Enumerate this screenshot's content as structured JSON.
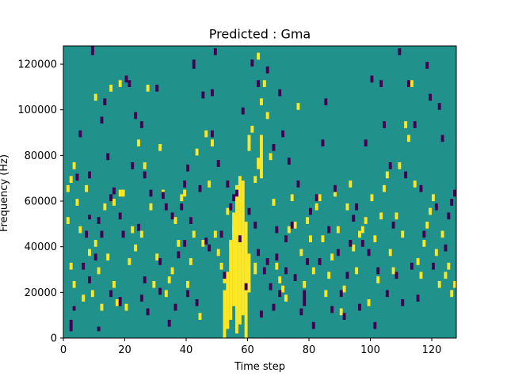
{
  "chart_data": {
    "type": "heatmap",
    "title": "Predicted : Gma",
    "xlabel": "Time step",
    "ylabel": "Frequency (Hz)",
    "xlim": [
      0,
      128
    ],
    "ylim": [
      0,
      128000
    ],
    "x_ticks": [
      0,
      20,
      40,
      60,
      80,
      100,
      120
    ],
    "x_tick_labels": [
      "0",
      "20",
      "40",
      "60",
      "80",
      "100",
      "120"
    ],
    "y_ticks": [
      0,
      20000,
      40000,
      60000,
      80000,
      100000,
      120000
    ],
    "y_tick_labels": [
      "0",
      "20000",
      "40000",
      "60000",
      "80000",
      "100000",
      "120000"
    ],
    "n_time_steps": 128,
    "n_freq_bins": 128,
    "freq_bin_width_hz": 1000,
    "value_levels": [
      -1,
      0,
      1
    ],
    "colors": {
      "-1": "#440154",
      "0": "#21918c",
      "1": "#fde725"
    },
    "colormap": "viridis",
    "background_value": 0,
    "cells_low": [
      [
        2,
        3,
        7
      ],
      [
        3,
        12,
        13
      ],
      [
        4,
        69,
        71
      ],
      [
        5,
        88,
        90
      ],
      [
        6,
        30,
        32
      ],
      [
        7,
        44,
        46
      ],
      [
        8,
        70,
        72
      ],
      [
        8,
        52,
        53
      ],
      [
        8,
        24,
        26
      ],
      [
        9,
        124,
        127
      ],
      [
        10,
        34,
        36
      ],
      [
        11,
        50,
        52
      ],
      [
        11,
        3,
        4
      ],
      [
        12,
        94,
        96
      ],
      [
        12,
        44,
        46
      ],
      [
        13,
        102,
        104
      ],
      [
        14,
        78,
        80
      ],
      [
        15,
        18,
        20
      ],
      [
        15,
        60,
        62
      ],
      [
        16,
        63,
        65
      ],
      [
        18,
        14,
        17
      ],
      [
        18,
        52,
        54
      ],
      [
        19,
        44,
        46
      ],
      [
        20,
        112,
        114
      ],
      [
        21,
        110,
        112
      ],
      [
        22,
        74,
        76
      ],
      [
        23,
        96,
        98
      ],
      [
        24,
        47,
        49
      ],
      [
        25,
        92,
        94
      ],
      [
        25,
        16,
        18
      ],
      [
        26,
        24,
        26
      ],
      [
        26,
        70,
        72
      ],
      [
        27,
        10,
        12
      ],
      [
        28,
        62,
        64
      ],
      [
        30,
        108,
        110
      ],
      [
        31,
        32,
        34
      ],
      [
        31,
        19,
        21
      ],
      [
        32,
        61,
        63
      ],
      [
        33,
        56,
        58
      ],
      [
        34,
        5,
        7
      ],
      [
        35,
        52,
        54
      ],
      [
        36,
        12,
        14
      ],
      [
        37,
        35,
        37
      ],
      [
        38,
        56,
        58
      ],
      [
        39,
        66,
        68
      ],
      [
        39,
        40,
        42
      ],
      [
        40,
        18,
        20
      ],
      [
        40,
        73,
        75
      ],
      [
        41,
        50,
        52
      ],
      [
        42,
        118,
        121
      ],
      [
        43,
        14,
        16
      ],
      [
        44,
        64,
        66
      ],
      [
        45,
        105,
        107
      ],
      [
        46,
        41,
        43
      ],
      [
        47,
        38,
        40
      ],
      [
        48,
        106,
        108
      ],
      [
        48,
        88,
        90
      ],
      [
        49,
        124,
        126
      ],
      [
        50,
        75,
        77
      ],
      [
        51,
        44,
        46
      ],
      [
        52,
        26,
        28
      ],
      [
        53,
        66,
        68
      ],
      [
        54,
        56,
        58
      ],
      [
        55,
        60,
        62
      ],
      [
        56,
        62,
        64
      ],
      [
        57,
        42,
        44
      ],
      [
        58,
        98,
        100
      ],
      [
        59,
        21,
        23
      ],
      [
        60,
        54,
        56
      ],
      [
        61,
        119,
        121
      ],
      [
        62,
        48,
        50
      ],
      [
        63,
        110,
        112
      ],
      [
        63,
        36,
        38
      ],
      [
        64,
        9,
        11
      ],
      [
        65,
        28,
        30
      ],
      [
        66,
        116,
        118
      ],
      [
        66,
        32,
        34
      ],
      [
        67,
        21,
        23
      ],
      [
        68,
        82,
        84
      ],
      [
        68,
        12,
        14
      ],
      [
        69,
        46,
        48
      ],
      [
        69,
        34,
        36
      ],
      [
        70,
        106,
        108
      ],
      [
        70,
        18,
        20
      ],
      [
        71,
        88,
        90
      ],
      [
        72,
        28,
        30
      ],
      [
        72,
        42,
        44
      ],
      [
        73,
        76,
        78
      ],
      [
        74,
        48,
        50
      ],
      [
        75,
        25,
        27
      ],
      [
        76,
        66,
        68
      ],
      [
        77,
        10,
        12
      ],
      [
        78,
        14,
        20
      ],
      [
        79,
        32,
        34
      ],
      [
        80,
        54,
        56
      ],
      [
        81,
        4,
        6
      ],
      [
        82,
        60,
        62
      ],
      [
        83,
        32,
        34
      ],
      [
        84,
        84,
        86
      ],
      [
        85,
        102,
        104
      ],
      [
        86,
        46,
        48
      ],
      [
        87,
        11,
        13
      ],
      [
        88,
        64,
        66
      ],
      [
        89,
        36,
        38
      ],
      [
        90,
        18,
        20
      ],
      [
        91,
        8,
        10
      ],
      [
        92,
        26,
        28
      ],
      [
        93,
        40,
        42
      ],
      [
        94,
        51,
        53
      ],
      [
        95,
        56,
        58
      ],
      [
        96,
        12,
        14
      ],
      [
        97,
        40,
        42
      ],
      [
        98,
        84,
        86
      ],
      [
        99,
        36,
        38
      ],
      [
        100,
        112,
        114
      ],
      [
        101,
        4,
        6
      ],
      [
        102,
        28,
        30
      ],
      [
        103,
        110,
        112
      ],
      [
        104,
        92,
        94
      ],
      [
        105,
        18,
        20
      ],
      [
        106,
        74,
        76
      ],
      [
        107,
        48,
        50
      ],
      [
        108,
        26,
        28
      ],
      [
        109,
        124,
        126
      ],
      [
        110,
        14,
        16
      ],
      [
        111,
        70,
        72
      ],
      [
        112,
        110,
        112
      ],
      [
        113,
        30,
        32
      ],
      [
        114,
        92,
        94
      ],
      [
        115,
        16,
        18
      ],
      [
        116,
        64,
        66
      ],
      [
        117,
        44,
        46
      ],
      [
        118,
        118,
        120
      ],
      [
        119,
        104,
        106
      ],
      [
        120,
        30,
        32
      ],
      [
        121,
        56,
        58
      ],
      [
        122,
        100,
        102
      ],
      [
        123,
        86,
        88
      ],
      [
        124,
        38,
        40
      ],
      [
        125,
        52,
        54
      ],
      [
        126,
        58,
        60
      ],
      [
        127,
        62,
        64
      ]
    ],
    "cells_high": [
      [
        1,
        64,
        66
      ],
      [
        1,
        50,
        52
      ],
      [
        2,
        68,
        70
      ],
      [
        2,
        30,
        32
      ],
      [
        3,
        22,
        24
      ],
      [
        3,
        74,
        76
      ],
      [
        4,
        58,
        60
      ],
      [
        5,
        46,
        48
      ],
      [
        6,
        16,
        18
      ],
      [
        7,
        64,
        66
      ],
      [
        8,
        36,
        38
      ],
      [
        9,
        18,
        20
      ],
      [
        10,
        104,
        106
      ],
      [
        10,
        40,
        42
      ],
      [
        11,
        28,
        30
      ],
      [
        12,
        12,
        14
      ],
      [
        13,
        56,
        58
      ],
      [
        14,
        34,
        36
      ],
      [
        15,
        108,
        110
      ],
      [
        16,
        58,
        60
      ],
      [
        16,
        22,
        24
      ],
      [
        17,
        14,
        16
      ],
      [
        18,
        110,
        112
      ],
      [
        18,
        62,
        64
      ],
      [
        19,
        62,
        64
      ],
      [
        20,
        12,
        14
      ],
      [
        21,
        32,
        34
      ],
      [
        22,
        46,
        48
      ],
      [
        23,
        38,
        40
      ],
      [
        24,
        84,
        86
      ],
      [
        25,
        44,
        46
      ],
      [
        26,
        74,
        76
      ],
      [
        27,
        108,
        110
      ],
      [
        28,
        56,
        58
      ],
      [
        29,
        22,
        24
      ],
      [
        30,
        34,
        36
      ],
      [
        31,
        82,
        84
      ],
      [
        32,
        62,
        64
      ],
      [
        33,
        18,
        20
      ],
      [
        34,
        24,
        26
      ],
      [
        35,
        28,
        30
      ],
      [
        36,
        50,
        52
      ],
      [
        37,
        40,
        42
      ],
      [
        38,
        60,
        62
      ],
      [
        39,
        62,
        64
      ],
      [
        40,
        22,
        24
      ],
      [
        41,
        32,
        34
      ],
      [
        42,
        44,
        46
      ],
      [
        43,
        80,
        82
      ],
      [
        44,
        8,
        10
      ],
      [
        45,
        40,
        42
      ],
      [
        46,
        88,
        90
      ],
      [
        47,
        66,
        68
      ],
      [
        48,
        84,
        86
      ],
      [
        49,
        44,
        46
      ],
      [
        50,
        36,
        38
      ],
      [
        51,
        30,
        32
      ],
      [
        52,
        24,
        26
      ],
      [
        53,
        54,
        56
      ],
      [
        54,
        40,
        42
      ],
      [
        55,
        46,
        48
      ],
      [
        56,
        48,
        50
      ],
      [
        57,
        58,
        60
      ],
      [
        58,
        34,
        36
      ],
      [
        59,
        28,
        30
      ],
      [
        60,
        86,
        88
      ],
      [
        61,
        90,
        92
      ],
      [
        62,
        68,
        70
      ],
      [
        63,
        122,
        124
      ],
      [
        64,
        102,
        104
      ],
      [
        65,
        110,
        112
      ],
      [
        66,
        96,
        98
      ],
      [
        67,
        78,
        80
      ],
      [
        68,
        58,
        60
      ],
      [
        69,
        30,
        32
      ],
      [
        70,
        24,
        26
      ],
      [
        71,
        20,
        22
      ],
      [
        72,
        16,
        18
      ],
      [
        73,
        46,
        48
      ],
      [
        74,
        60,
        62
      ],
      [
        75,
        48,
        50
      ],
      [
        76,
        100,
        102
      ],
      [
        77,
        36,
        38
      ],
      [
        78,
        22,
        24
      ],
      [
        79,
        50,
        52
      ],
      [
        80,
        42,
        44
      ],
      [
        81,
        28,
        30
      ],
      [
        82,
        56,
        58
      ],
      [
        83,
        60,
        62
      ],
      [
        84,
        42,
        44
      ],
      [
        85,
        18,
        20
      ],
      [
        86,
        26,
        28
      ],
      [
        87,
        34,
        36
      ],
      [
        88,
        62,
        64
      ],
      [
        89,
        46,
        48
      ],
      [
        90,
        10,
        12
      ],
      [
        91,
        20,
        22
      ],
      [
        92,
        56,
        58
      ],
      [
        93,
        66,
        68
      ],
      [
        94,
        38,
        40
      ],
      [
        95,
        28,
        30
      ],
      [
        96,
        44,
        46
      ],
      [
        97,
        46,
        48
      ],
      [
        98,
        50,
        52
      ],
      [
        99,
        14,
        16
      ],
      [
        100,
        60,
        62
      ],
      [
        101,
        42,
        44
      ],
      [
        102,
        24,
        26
      ],
      [
        103,
        52,
        54
      ],
      [
        104,
        64,
        66
      ],
      [
        105,
        70,
        72
      ],
      [
        106,
        36,
        38
      ],
      [
        107,
        28,
        30
      ],
      [
        108,
        52,
        54
      ],
      [
        109,
        74,
        76
      ],
      [
        110,
        44,
        46
      ],
      [
        111,
        92,
        94
      ],
      [
        112,
        86,
        88
      ],
      [
        113,
        110,
        112
      ],
      [
        114,
        66,
        68
      ],
      [
        115,
        32,
        34
      ],
      [
        116,
        26,
        28
      ],
      [
        117,
        40,
        42
      ],
      [
        118,
        48,
        50
      ],
      [
        119,
        54,
        56
      ],
      [
        120,
        60,
        62
      ],
      [
        121,
        36,
        38
      ],
      [
        122,
        22,
        24
      ],
      [
        123,
        44,
        46
      ],
      [
        124,
        26,
        28
      ],
      [
        125,
        30,
        32
      ],
      [
        126,
        18,
        20
      ],
      [
        127,
        22,
        24
      ]
    ],
    "band_high": [
      [
        52,
        0,
        20
      ],
      [
        53,
        4,
        28
      ],
      [
        54,
        8,
        40
      ],
      [
        55,
        14,
        54
      ],
      [
        56,
        2,
        66
      ],
      [
        57,
        6,
        70
      ],
      [
        58,
        10,
        68
      ],
      [
        59,
        0,
        50
      ],
      [
        60,
        20,
        36
      ],
      [
        60,
        82,
        86
      ],
      [
        62,
        28,
        32
      ],
      [
        63,
        74,
        78
      ],
      [
        64,
        70,
        88
      ]
    ]
  }
}
